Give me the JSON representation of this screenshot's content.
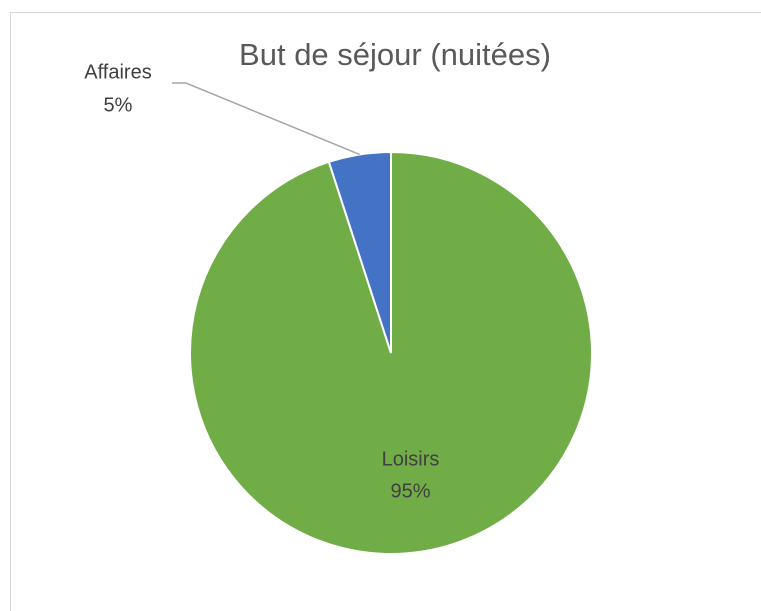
{
  "chart_data": {
    "type": "pie",
    "title": "But de séjour (nuitées)",
    "categories": [
      "Loisirs",
      "Affaires"
    ],
    "values": [
      95,
      5
    ],
    "value_labels": [
      "95%",
      "5%"
    ],
    "colors": [
      "#70ad47",
      "#4472c4"
    ]
  }
}
